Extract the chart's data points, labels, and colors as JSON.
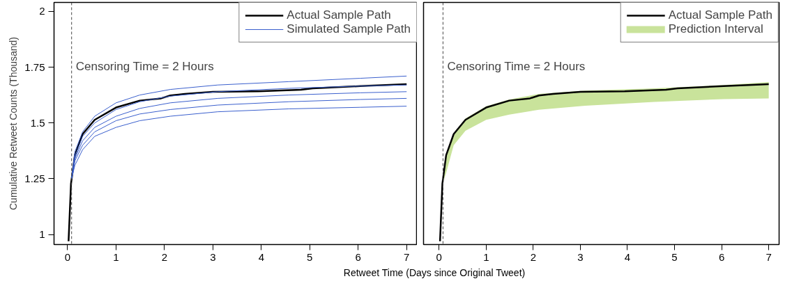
{
  "chart_data": [
    {
      "type": "line",
      "ylabel": "Cumulative Retweet Counts (Thousand)",
      "xlabel": "Retweet Time (Days since Original Tweet)",
      "xlim": [
        -0.28,
        7.22
      ],
      "xticks": [
        0,
        1,
        2,
        3,
        4,
        5,
        6,
        7
      ],
      "ylim": [
        0.955,
        2.04
      ],
      "yticks": [
        1,
        1.25,
        1.5,
        1.75,
        2
      ],
      "legend": "top right",
      "grid": false,
      "ref_lines": [
        {
          "axis": "x",
          "value": 0.083,
          "line_style": "dashed"
        }
      ],
      "annotations": [
        "Censoring Time = 2 Hours"
      ],
      "series": [
        {
          "name": "Actual Sample Path",
          "color": "#000000",
          "x": [
            0.02,
            0.07,
            0.15,
            0.31,
            0.56,
            1.0,
            1.49,
            1.93,
            2.12,
            2.42,
            3.0,
            3.94,
            4.82,
            5.06,
            6.04,
            7.0
          ],
          "values": [
            0.97,
            1.227,
            1.355,
            1.45,
            1.514,
            1.569,
            1.6,
            1.61,
            1.623,
            1.63,
            1.639,
            1.642,
            1.649,
            1.655,
            1.665,
            1.674
          ]
        },
        {
          "name": "Simulated Sample Path",
          "color": "#3a5fcd",
          "x": [
            0.083,
            0.15,
            0.31,
            0.56,
            1.0,
            1.49,
            2.12,
            3.1,
            4.57,
            6.04,
            7.0
          ],
          "values": [
            1.25,
            1.37,
            1.46,
            1.53,
            1.59,
            1.625,
            1.65,
            1.67,
            1.685,
            1.7,
            1.71
          ]
        },
        {
          "color": "#3a5fcd",
          "x": [
            0.083,
            0.15,
            0.31,
            0.56,
            1.0,
            1.49,
            2.12,
            3.1,
            4.57,
            6.04,
            7.0
          ],
          "values": [
            1.25,
            1.35,
            1.44,
            1.5,
            1.56,
            1.595,
            1.62,
            1.64,
            1.655,
            1.665,
            1.67
          ]
        },
        {
          "color": "#3a5fcd",
          "x": [
            0.083,
            0.15,
            0.31,
            0.56,
            1.0,
            1.49,
            2.12,
            3.1,
            4.57,
            6.04,
            7.0
          ],
          "values": [
            1.25,
            1.34,
            1.42,
            1.48,
            1.53,
            1.565,
            1.59,
            1.61,
            1.625,
            1.635,
            1.64
          ]
        },
        {
          "color": "#3a5fcd",
          "x": [
            0.083,
            0.15,
            0.31,
            0.56,
            1.0,
            1.49,
            2.12,
            3.1,
            4.57,
            6.04,
            7.0
          ],
          "values": [
            1.25,
            1.33,
            1.4,
            1.46,
            1.51,
            1.54,
            1.56,
            1.58,
            1.595,
            1.605,
            1.61
          ]
        },
        {
          "color": "#3a5fcd",
          "x": [
            0.083,
            0.15,
            0.31,
            0.56,
            1.0,
            1.49,
            2.12,
            3.1,
            4.57,
            6.04,
            7.0
          ],
          "values": [
            1.25,
            1.31,
            1.38,
            1.44,
            1.48,
            1.51,
            1.53,
            1.55,
            1.563,
            1.57,
            1.575
          ]
        }
      ]
    },
    {
      "type": "line",
      "xlim": [
        -0.33,
        7.22
      ],
      "xticks": [
        0,
        1,
        2,
        3,
        4,
        5,
        6,
        7
      ],
      "ylim": [
        0.955,
        2.04
      ],
      "tick_labels": "x",
      "legend": "top right",
      "grid": false,
      "ref_lines": [
        {
          "axis": "x",
          "value": 0.083,
          "line_style": "dashed"
        }
      ],
      "annotations": [
        "Censoring Time = 2 Hours"
      ],
      "series": [
        {
          "name": "Actual Sample Path",
          "color": "#000000",
          "x": [
            0.02,
            0.07,
            0.15,
            0.31,
            0.56,
            1.0,
            1.49,
            1.93,
            2.12,
            2.42,
            3.0,
            3.94,
            4.82,
            5.06,
            6.04,
            7.0
          ],
          "values": [
            0.97,
            1.227,
            1.355,
            1.45,
            1.514,
            1.569,
            1.6,
            1.61,
            1.623,
            1.63,
            1.639,
            1.642,
            1.649,
            1.655,
            1.665,
            1.674
          ]
        },
        {
          "name": "Prediction Interval",
          "type": "area",
          "color": "#c9e39b",
          "x": [
            0.07,
            0.15,
            0.31,
            0.56,
            1.0,
            1.49,
            2.12,
            3.1,
            4.57,
            6.04,
            7.0
          ],
          "lower": [
            1.227,
            1.276,
            1.4,
            1.465,
            1.514,
            1.537,
            1.559,
            1.577,
            1.594,
            1.607,
            1.61
          ],
          "upper": [
            1.23,
            1.36,
            1.455,
            1.52,
            1.575,
            1.605,
            1.63,
            1.645,
            1.655,
            1.67,
            1.683
          ],
          "values": [
            null,
            null,
            null,
            null,
            null,
            null,
            null,
            null,
            null,
            null,
            null
          ]
        }
      ]
    }
  ]
}
